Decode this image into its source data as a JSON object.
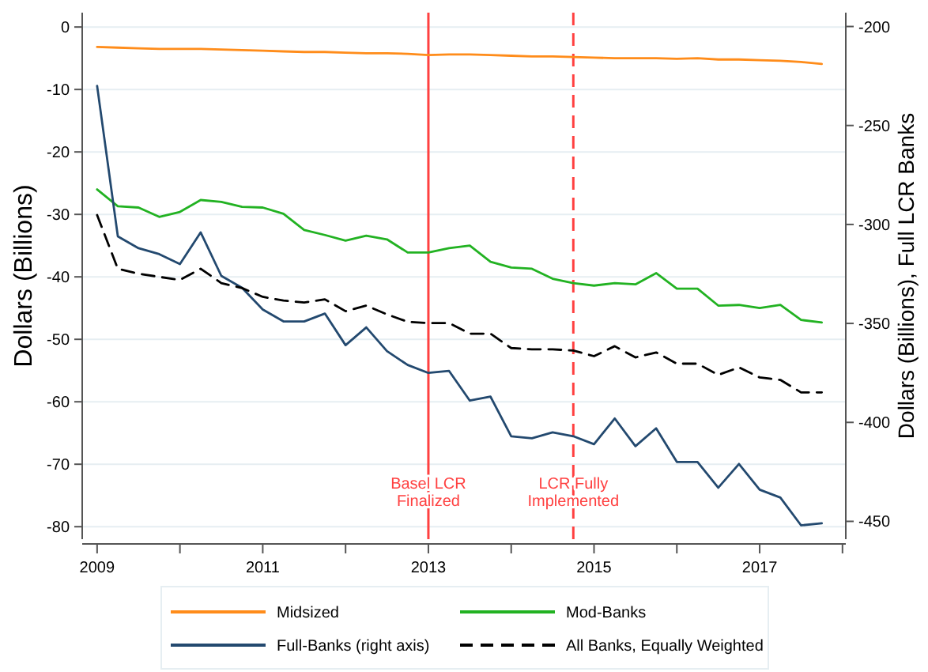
{
  "chart_data": {
    "type": "line",
    "ylabel": "Dollars (Billions)",
    "y2label": "Dollars (Billions), Full LCR Banks",
    "x": [
      2009,
      2009.25,
      2009.5,
      2009.75,
      2010,
      2010.25,
      2010.5,
      2010.75,
      2011,
      2011.25,
      2011.5,
      2011.75,
      2012,
      2012.25,
      2012.5,
      2012.75,
      2013,
      2013.25,
      2013.5,
      2013.75,
      2014,
      2014.25,
      2014.5,
      2014.75,
      2015,
      2015.25,
      2015.5,
      2015.75,
      2016,
      2016.25,
      2016.5,
      2016.75,
      2017,
      2017.25,
      2017.5,
      2017.75
    ],
    "series": [
      {
        "name": "Midsized",
        "color": "#ff8c1a",
        "values": [
          -3.2,
          -3.3,
          -3.4,
          -3.5,
          -3.5,
          -3.5,
          -3.6,
          -3.7,
          -3.8,
          -3.9,
          -4.0,
          -4.0,
          -4.1,
          -4.2,
          -4.2,
          -4.3,
          -4.5,
          -4.4,
          -4.4,
          -4.5,
          -4.6,
          -4.7,
          -4.7,
          -4.8,
          -4.9,
          -5.0,
          -5.0,
          -5.0,
          -5.1,
          -5.0,
          -5.2,
          -5.2,
          -5.3,
          -5.4,
          -5.6,
          -5.9
        ]
      },
      {
        "name": "Mod-Banks",
        "color": "#22b222",
        "values": [
          -26.0,
          -28.7,
          -28.9,
          -30.4,
          -29.6,
          -27.7,
          -28.0,
          -28.8,
          -28.9,
          -29.9,
          -32.5,
          -33.3,
          -34.2,
          -33.4,
          -34.0,
          -36.1,
          -36.1,
          -35.4,
          -35.0,
          -37.6,
          -38.5,
          -38.7,
          -40.3,
          -41.0,
          -41.4,
          -41.0,
          -41.2,
          -39.4,
          -41.9,
          -41.9,
          -44.6,
          -44.5,
          -45.0,
          -44.5,
          -46.9,
          -47.3
        ]
      },
      {
        "name": "Full-Banks (right axis)",
        "color": "#23496f",
        "axis": "y2",
        "values": [
          -230,
          -306,
          -312,
          -315,
          -320,
          -304,
          -326,
          -332,
          -343,
          -349,
          -349,
          -345,
          -361,
          -352,
          -364,
          -371,
          -375,
          -374,
          -389,
          -387,
          -407,
          -408,
          -405,
          -407,
          -411,
          -398,
          -412,
          -403,
          -420,
          -420,
          -433,
          -421,
          -434,
          -438,
          -452,
          -451
        ]
      },
      {
        "name": "All Banks, Equally Weighted",
        "color": "#000000",
        "line_style": "dashed",
        "values": [
          -30.1,
          -38.7,
          -39.5,
          -40.0,
          -40.5,
          -38.7,
          -41.0,
          -41.8,
          -43.2,
          -43.8,
          -44.1,
          -43.6,
          -45.5,
          -44.6,
          -46.0,
          -47.2,
          -47.4,
          -47.4,
          -49.1,
          -49.1,
          -51.4,
          -51.6,
          -51.6,
          -51.8,
          -52.7,
          -51.1,
          -52.9,
          -52.1,
          -53.9,
          -53.9,
          -55.7,
          -54.5,
          -56.1,
          -56.5,
          -58.5,
          -58.5
        ]
      }
    ],
    "xlim": [
      2008.82,
      2018.04
    ],
    "xticks": [
      2009,
      {
        "value": 2010,
        "label": null
      },
      2011,
      {
        "value": 2012,
        "label": null
      },
      2013,
      {
        "value": 2014,
        "label": null
      },
      2015,
      {
        "value": 2016,
        "label": null
      },
      2017,
      {
        "value": 2018,
        "label": null
      }
    ],
    "ylim": [
      -82,
      2.3
    ],
    "yticks": [
      0,
      -10,
      -20,
      -30,
      -40,
      -50,
      -60,
      -70,
      -80
    ],
    "y2lim": [
      -459,
      -193
    ],
    "y2ticks": [
      -200,
      -250,
      -300,
      -350,
      -400,
      -450
    ],
    "ref_lines": [
      {
        "axis": "x",
        "value": 2013,
        "label": "Basel LCR\nFinalized",
        "color": "#ff4040",
        "line_style": "solid"
      },
      {
        "axis": "x",
        "value": 2014.75,
        "label": "LCR Fully\nImplemented",
        "color": "#ff4040",
        "line_style": "dashed"
      }
    ],
    "grid": "y",
    "legend": "bottom"
  }
}
